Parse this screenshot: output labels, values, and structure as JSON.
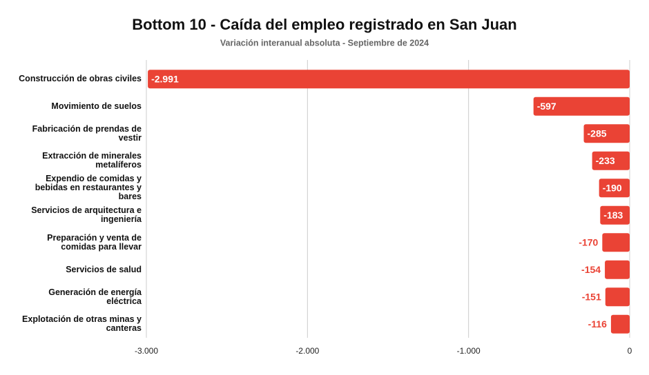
{
  "chart_data": {
    "type": "hbar",
    "title": "Bottom 10 - Caída del empleo registrado en San Juan",
    "subtitle": "Variación interanual absoluta - Septiembre de 2024",
    "categories": [
      "Construcción de obras civiles",
      "Movimiento de suelos",
      "Fabricación de prendas de vestir",
      "Extracción de minerales metalíferos",
      "Expendio de comidas y bebidas en restaurantes y bares",
      "Servicios de arquitectura e ingeniería",
      "Preparación y venta de comidas para llevar",
      "Servicios de salud",
      "Generación de energía eléctrica",
      "Explotación de otras minas y canteras"
    ],
    "values": [
      -2991,
      -597,
      -285,
      -233,
      -190,
      -183,
      -170,
      -154,
      -151,
      -116
    ],
    "value_labels": [
      "-2.991",
      "-597",
      "-285",
      "-233",
      "-190",
      "-183",
      "-170",
      "-154",
      "-151",
      "-116"
    ],
    "color": "#ea4335",
    "xlim": [
      -3000,
      0
    ],
    "xticks": [
      {
        "value": -3000,
        "label": "-3.000"
      },
      {
        "value": -2000,
        "label": "-2.000"
      },
      {
        "value": -1000,
        "label": "-1.000"
      },
      0
    ],
    "grid": true
  }
}
